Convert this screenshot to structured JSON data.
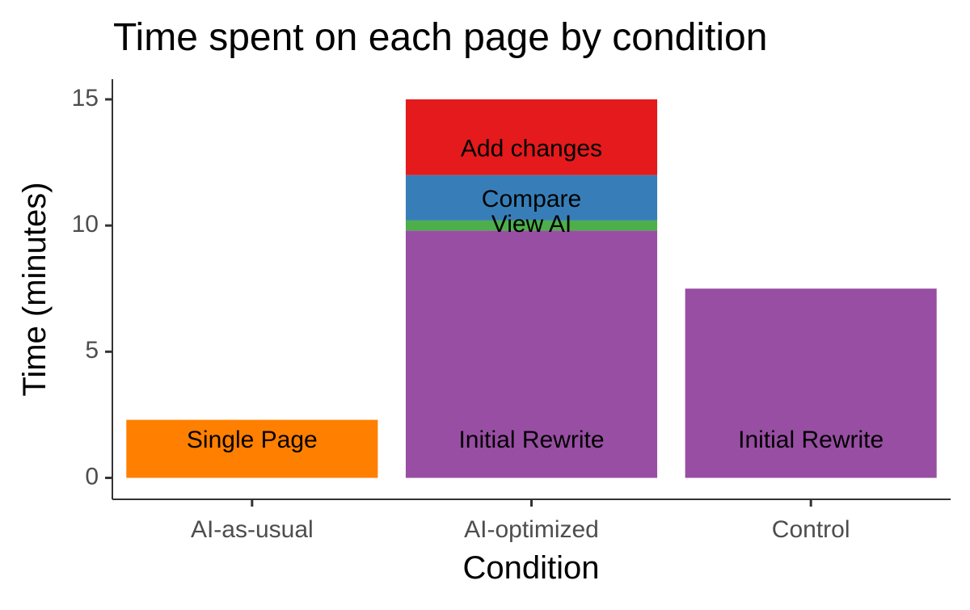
{
  "chart_data": {
    "type": "bar",
    "stacked": true,
    "title": "Time spent on each page by condition",
    "xlabel": "Condition",
    "ylabel": "Time (minutes)",
    "ylim": [
      -0.85,
      15.8
    ],
    "yticks": [
      0,
      5,
      10,
      15
    ],
    "grid": false,
    "legend": "none",
    "categories": [
      "AI-as-usual",
      "AI-optimized",
      "Control"
    ],
    "bars": [
      {
        "category": "AI-as-usual",
        "segments": [
          {
            "label": "Single Page",
            "value": 2.3,
            "color": "#FF7F00",
            "label_y": 1.45
          }
        ]
      },
      {
        "category": "AI-optimized",
        "segments": [
          {
            "label": "Initial Rewrite",
            "value": 9.8,
            "color": "#984EA3",
            "label_y": 1.45
          },
          {
            "label": "View AI",
            "value": 0.4,
            "color": "#4DAF4A",
            "label_y": 10.0
          },
          {
            "label": "Compare",
            "value": 1.8,
            "color": "#377EB8",
            "label_y": 11.0
          },
          {
            "label": "Add changes",
            "value": 3.0,
            "color": "#E41A1C",
            "label_y": 13.0
          }
        ]
      },
      {
        "category": "Control",
        "segments": [
          {
            "label": "Initial Rewrite",
            "value": 7.5,
            "color": "#984EA3",
            "label_y": 1.45
          }
        ]
      }
    ]
  }
}
